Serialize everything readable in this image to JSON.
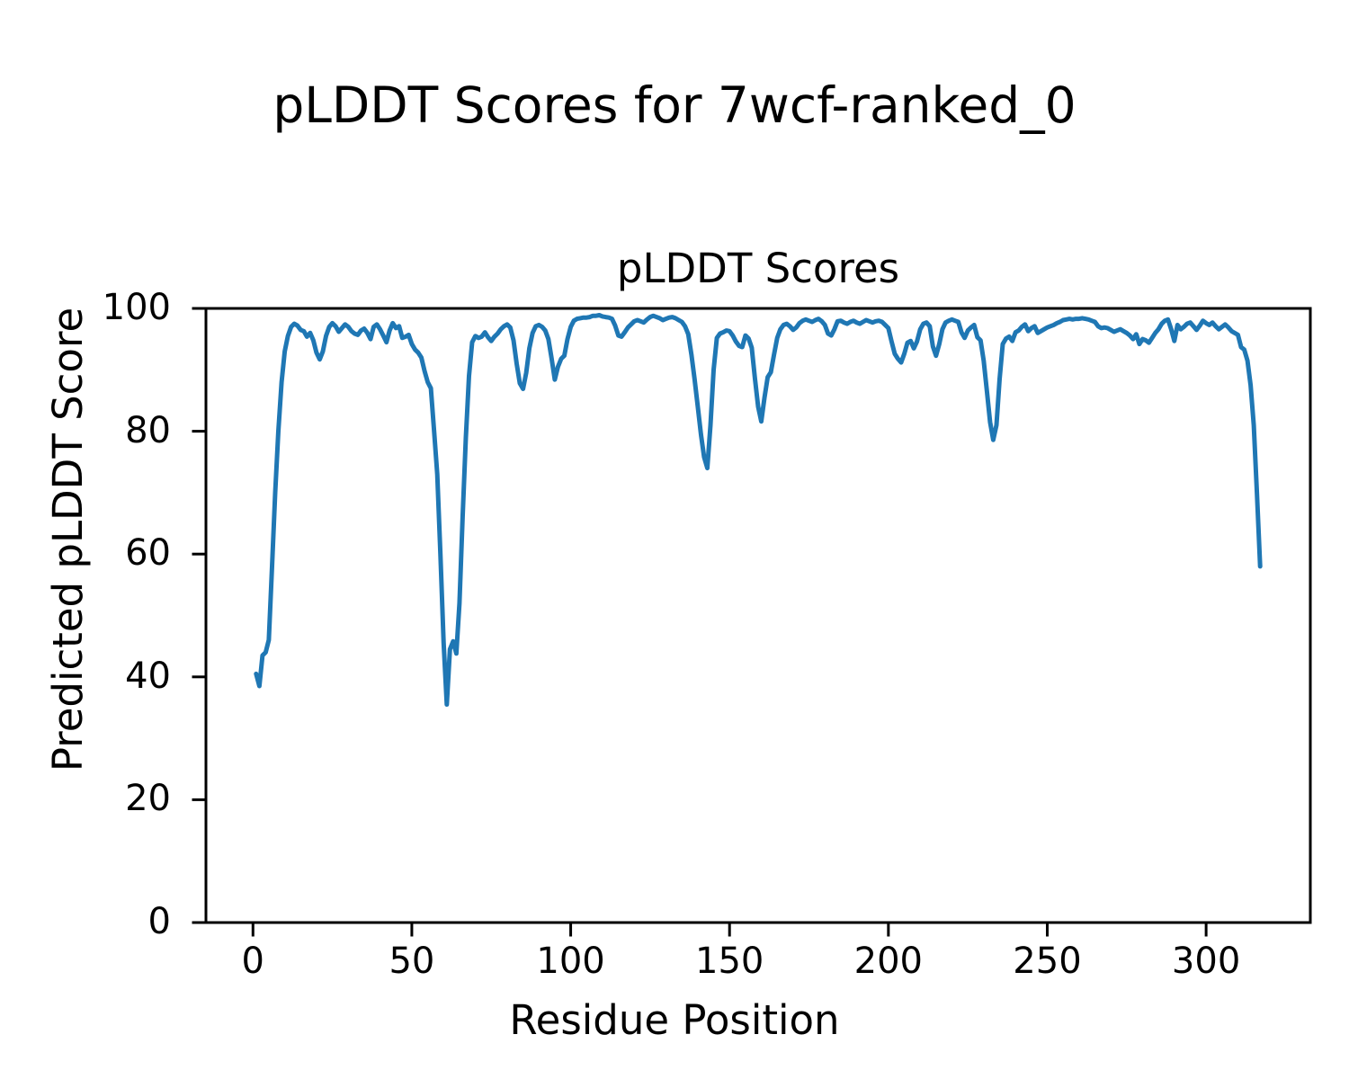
{
  "figure": {
    "suptitle": "pLDDT Scores for 7wcf-ranked_0",
    "background_color": "#ffffff",
    "text_color": "#000000",
    "spine_color": "#000000"
  },
  "chart_data": {
    "type": "line",
    "title": "pLDDT Scores",
    "xlabel": "Residue Position",
    "ylabel": "Predicted pLDDT Score",
    "series_name": "pLDDT",
    "line_color": "#1f77b4",
    "grid": false,
    "legend": false,
    "xlim": [
      -14.8,
      332.8
    ],
    "ylim": [
      0,
      100
    ],
    "xticks": [
      0,
      50,
      100,
      150,
      200,
      250,
      300
    ],
    "yticks": [
      0,
      20,
      40,
      60,
      80,
      100
    ],
    "x_start": 1,
    "x_step": 1,
    "values": [
      40.5,
      38.5,
      43.5,
      44.0,
      46.0,
      58.0,
      70.0,
      80.0,
      88.0,
      93.0,
      95.5,
      97.0,
      97.5,
      97.2,
      96.5,
      96.3,
      95.4,
      96.0,
      94.8,
      92.8,
      91.7,
      93.0,
      95.5,
      97.0,
      97.6,
      97.1,
      96.2,
      96.8,
      97.4,
      97.0,
      96.3,
      95.9,
      95.7,
      96.4,
      96.7,
      96.0,
      95.0,
      97.0,
      97.4,
      96.6,
      95.6,
      94.5,
      96.4,
      97.6,
      96.8,
      97.1,
      95.2,
      95.4,
      95.7,
      94.2,
      93.3,
      92.8,
      92.0,
      89.8,
      88.0,
      87.0,
      80.0,
      73.0,
      60.0,
      45.5,
      35.5,
      44.5,
      45.8,
      43.8,
      52.0,
      66.0,
      79.0,
      89.0,
      94.5,
      95.5,
      95.2,
      95.4,
      96.1,
      95.3,
      94.7,
      95.4,
      95.9,
      96.6,
      97.1,
      97.4,
      96.9,
      94.8,
      91.0,
      87.8,
      86.9,
      89.5,
      93.5,
      96.0,
      97.1,
      97.3,
      97.0,
      96.4,
      95.0,
      91.8,
      88.4,
      90.5,
      91.8,
      92.3,
      95.0,
      97.0,
      98.0,
      98.3,
      98.4,
      98.5,
      98.5,
      98.6,
      98.8,
      98.8,
      98.9,
      98.7,
      98.6,
      98.5,
      98.3,
      97.2,
      95.6,
      95.4,
      96.1,
      96.9,
      97.4,
      97.9,
      98.1,
      97.9,
      97.7,
      98.2,
      98.6,
      98.8,
      98.6,
      98.4,
      98.1,
      98.3,
      98.5,
      98.6,
      98.4,
      98.1,
      97.8,
      97.1,
      95.8,
      92.5,
      88.5,
      84.0,
      79.5,
      75.8,
      74.0,
      81.0,
      90.0,
      95.2,
      95.9,
      96.1,
      96.4,
      96.3,
      95.6,
      94.6,
      93.9,
      93.7,
      95.6,
      95.1,
      93.6,
      88.5,
      84.0,
      81.6,
      85.5,
      88.8,
      89.6,
      92.5,
      95.2,
      96.6,
      97.3,
      97.5,
      97.1,
      96.5,
      96.9,
      97.6,
      98.0,
      98.2,
      98.0,
      97.8,
      98.1,
      98.3,
      97.9,
      97.3,
      95.9,
      95.6,
      96.6,
      97.9,
      98.0,
      97.7,
      97.5,
      97.8,
      98.0,
      97.7,
      97.5,
      97.8,
      98.1,
      97.9,
      97.7,
      97.9,
      98.0,
      97.8,
      97.3,
      96.8,
      94.6,
      92.6,
      91.8,
      91.2,
      92.6,
      94.4,
      94.7,
      93.5,
      94.6,
      96.6,
      97.5,
      97.7,
      97.1,
      93.8,
      92.3,
      94.2,
      96.6,
      97.7,
      98.0,
      98.2,
      98.0,
      97.8,
      96.1,
      95.2,
      96.4,
      96.9,
      97.3,
      95.3,
      94.8,
      91.5,
      86.5,
      81.5,
      78.6,
      81.0,
      88.5,
      94.2,
      95.1,
      95.4,
      94.7,
      96.1,
      96.4,
      97.0,
      97.4,
      96.3,
      96.8,
      97.1,
      96.0,
      96.3,
      96.6,
      96.9,
      97.1,
      97.3,
      97.6,
      97.8,
      98.1,
      98.2,
      98.3,
      98.2,
      98.3,
      98.3,
      98.4,
      98.3,
      98.2,
      98.0,
      97.8,
      97.1,
      96.8,
      96.9,
      96.8,
      96.5,
      96.2,
      96.4,
      96.6,
      96.3,
      96.0,
      95.6,
      95.0,
      95.8,
      94.2,
      95.0,
      94.8,
      94.4,
      95.2,
      96.0,
      96.6,
      97.5,
      98.0,
      98.2,
      96.6,
      94.7,
      97.3,
      96.6,
      97.0,
      97.5,
      97.7,
      97.1,
      96.5,
      97.2,
      98.0,
      97.6,
      97.3,
      97.7,
      97.1,
      96.6,
      97.0,
      97.4,
      96.9,
      96.3,
      96.0,
      95.7,
      93.7,
      93.3,
      91.5,
      87.5,
      81.0,
      70.0,
      58.0
    ]
  }
}
